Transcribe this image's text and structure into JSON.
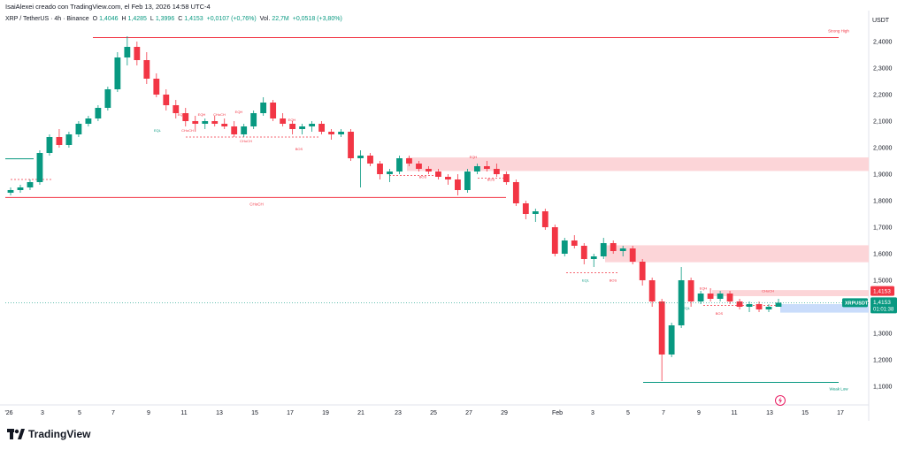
{
  "header": {
    "author_line": "IsaiAlexei creado con TradingView.com, el Feb 13, 2026 14:58 UTC-4",
    "symbol": "XRP / TetherUS · 4h · Binance",
    "ohlc": {
      "o_label": "O",
      "o": "1,4046",
      "h_label": "H",
      "h": "1,4285",
      "l_label": "L",
      "l": "1,3996",
      "c_label": "C",
      "c": "1,4153",
      "change": "+0,0107 (+0,76%)",
      "vol_label": "Vol.",
      "vol": "22,7M",
      "vol_change": "+0,0518 (+3,80%)"
    },
    "currency": "USDT"
  },
  "brand": {
    "logo_text": "TradingView",
    "logo_icon": "tradingview-logo-icon"
  },
  "colors": {
    "up": "#089981",
    "down": "#f23645",
    "zone": "#fcd5d8",
    "zone_blue": "#c9dcfb",
    "axis": "#e0e3eb"
  },
  "chart_data": {
    "type": "candlestick",
    "y_axis": {
      "min": 1.05,
      "max": 2.45,
      "ticks": [
        "2,4000",
        "2,3000",
        "2,2000",
        "2,1000",
        "2,0000",
        "1,9000",
        "1,8000",
        "1,7000",
        "1,6000",
        "1,5000",
        "1,4000",
        "1,3000",
        "1,2000",
        "1,1000"
      ],
      "tick_values": [
        2.4,
        2.3,
        2.2,
        2.1,
        2.0,
        1.9,
        1.8,
        1.7,
        1.6,
        1.5,
        1.4,
        1.3,
        1.2,
        1.1
      ]
    },
    "x_axis": {
      "labels": [
        "'26",
        "3",
        "5",
        "7",
        "9",
        "11",
        "13",
        "15",
        "17",
        "19",
        "21",
        "23",
        "25",
        "27",
        "29",
        "Feb",
        "3",
        "5",
        "7",
        "9",
        "11",
        "13",
        "15",
        "17"
      ]
    },
    "price_labels": {
      "current": {
        "text": "1,4153",
        "value": 1.4153
      },
      "symbol_tag": {
        "symbol": "XRPUSDT",
        "price": "1,4153",
        "countdown": "01:01:38"
      }
    },
    "levels": [
      {
        "label": "Strong High",
        "value": 2.415,
        "color": "#f23645"
      },
      {
        "label": "CHoCH",
        "value": 1.812,
        "color": "#f23645"
      },
      {
        "label": "Weak Low",
        "value": 1.115,
        "color": "#089981"
      },
      {
        "label": "",
        "value": 1.958,
        "color": "#089981"
      }
    ],
    "zones": [
      {
        "top": 1.963,
        "bottom": 1.912,
        "color": "#fcd5d8"
      },
      {
        "top": 1.632,
        "bottom": 1.568,
        "color": "#fcd5d8"
      },
      {
        "top": 1.463,
        "bottom": 1.44,
        "color": "#fcd5d8"
      },
      {
        "top": 1.41,
        "bottom": 1.378,
        "color": "#c9dcfb"
      }
    ],
    "annotations": [
      {
        "text": "EQH",
        "value": 2.095
      },
      {
        "text": "EQH",
        "value": 2.095
      },
      {
        "text": "CHoCH",
        "value": 2.095
      },
      {
        "text": "EQH",
        "value": 2.095
      },
      {
        "text": "EQL",
        "value": 2.095
      },
      {
        "text": "CHoCH",
        "value": 2.095
      },
      {
        "text": "CHoCH",
        "value": 2.095
      },
      {
        "text": "EQH",
        "value": 2.095
      },
      {
        "text": "BOS",
        "value": 2.095
      },
      {
        "text": "EQH",
        "value": 2.095
      },
      {
        "text": "BOS",
        "value": 2.095
      },
      {
        "text": "BOS",
        "value": 2.095
      },
      {
        "text": "EQL",
        "value": 2.095
      },
      {
        "text": "BOS",
        "value": 2.095
      },
      {
        "text": "EQH",
        "value": 2.095
      },
      {
        "text": "EQL",
        "value": 2.095
      },
      {
        "text": "BOS",
        "value": 2.095
      },
      {
        "text": "CHoCH",
        "value": 2.095
      }
    ],
    "ohlc": [
      [
        1.83,
        1.85,
        1.82,
        1.84
      ],
      [
        1.84,
        1.86,
        1.83,
        1.85
      ],
      [
        1.85,
        1.88,
        1.84,
        1.87
      ],
      [
        1.87,
        1.99,
        1.86,
        1.98
      ],
      [
        1.98,
        2.05,
        1.97,
        2.04
      ],
      [
        2.04,
        2.07,
        2.0,
        2.01
      ],
      [
        2.01,
        2.06,
        2.0,
        2.05
      ],
      [
        2.05,
        2.1,
        2.04,
        2.09
      ],
      [
        2.09,
        2.12,
        2.08,
        2.11
      ],
      [
        2.11,
        2.16,
        2.1,
        2.15
      ],
      [
        2.15,
        2.23,
        2.14,
        2.22
      ],
      [
        2.22,
        2.36,
        2.21,
        2.34
      ],
      [
        2.34,
        2.42,
        2.31,
        2.38
      ],
      [
        2.38,
        2.4,
        2.31,
        2.33
      ],
      [
        2.33,
        2.36,
        2.24,
        2.26
      ],
      [
        2.26,
        2.28,
        2.19,
        2.2
      ],
      [
        2.2,
        2.22,
        2.14,
        2.16
      ],
      [
        2.16,
        2.18,
        2.11,
        2.13
      ],
      [
        2.13,
        2.15,
        2.08,
        2.1
      ],
      [
        2.1,
        2.12,
        2.06,
        2.09
      ],
      [
        2.09,
        2.11,
        2.07,
        2.1
      ],
      [
        2.1,
        2.12,
        2.08,
        2.09
      ],
      [
        2.09,
        2.11,
        2.07,
        2.08
      ],
      [
        2.08,
        2.1,
        2.04,
        2.05
      ],
      [
        2.05,
        2.09,
        2.04,
        2.08
      ],
      [
        2.08,
        2.14,
        2.07,
        2.13
      ],
      [
        2.13,
        2.19,
        2.12,
        2.17
      ],
      [
        2.17,
        2.18,
        2.1,
        2.11
      ],
      [
        2.11,
        2.13,
        2.08,
        2.09
      ],
      [
        2.09,
        2.1,
        2.05,
        2.07
      ],
      [
        2.07,
        2.09,
        2.05,
        2.08
      ],
      [
        2.08,
        2.1,
        2.06,
        2.09
      ],
      [
        2.09,
        2.1,
        2.05,
        2.06
      ],
      [
        2.06,
        2.07,
        2.03,
        2.05
      ],
      [
        2.05,
        2.07,
        2.04,
        2.06
      ],
      [
        2.06,
        2.07,
        1.95,
        1.96
      ],
      [
        1.96,
        1.99,
        1.85,
        1.97
      ],
      [
        1.97,
        1.98,
        1.93,
        1.94
      ],
      [
        1.94,
        1.95,
        1.88,
        1.9
      ],
      [
        1.9,
        1.92,
        1.87,
        1.91
      ],
      [
        1.91,
        1.97,
        1.9,
        1.96
      ],
      [
        1.96,
        1.97,
        1.93,
        1.94
      ],
      [
        1.94,
        1.95,
        1.91,
        1.92
      ],
      [
        1.92,
        1.93,
        1.9,
        1.91
      ],
      [
        1.91,
        1.92,
        1.88,
        1.89
      ],
      [
        1.89,
        1.9,
        1.86,
        1.88
      ],
      [
        1.88,
        1.9,
        1.82,
        1.84
      ],
      [
        1.84,
        1.92,
        1.83,
        1.91
      ],
      [
        1.91,
        1.94,
        1.9,
        1.93
      ],
      [
        1.93,
        1.95,
        1.91,
        1.92
      ],
      [
        1.92,
        1.94,
        1.89,
        1.9
      ],
      [
        1.9,
        1.91,
        1.86,
        1.87
      ],
      [
        1.87,
        1.88,
        1.78,
        1.79
      ],
      [
        1.79,
        1.8,
        1.73,
        1.75
      ],
      [
        1.75,
        1.77,
        1.72,
        1.76
      ],
      [
        1.76,
        1.77,
        1.69,
        1.7
      ],
      [
        1.7,
        1.71,
        1.59,
        1.6
      ],
      [
        1.6,
        1.66,
        1.59,
        1.65
      ],
      [
        1.65,
        1.67,
        1.62,
        1.63
      ],
      [
        1.63,
        1.64,
        1.56,
        1.58
      ],
      [
        1.58,
        1.6,
        1.55,
        1.59
      ],
      [
        1.59,
        1.66,
        1.58,
        1.64
      ],
      [
        1.64,
        1.65,
        1.6,
        1.61
      ],
      [
        1.61,
        1.63,
        1.59,
        1.62
      ],
      [
        1.62,
        1.63,
        1.56,
        1.57
      ],
      [
        1.57,
        1.58,
        1.48,
        1.5
      ],
      [
        1.5,
        1.51,
        1.4,
        1.42
      ],
      [
        1.42,
        1.43,
        1.12,
        1.22
      ],
      [
        1.22,
        1.34,
        1.21,
        1.33
      ],
      [
        1.33,
        1.55,
        1.32,
        1.5
      ],
      [
        1.5,
        1.51,
        1.4,
        1.42
      ],
      [
        1.42,
        1.46,
        1.41,
        1.45
      ],
      [
        1.45,
        1.47,
        1.42,
        1.43
      ],
      [
        1.43,
        1.46,
        1.42,
        1.45
      ],
      [
        1.45,
        1.46,
        1.41,
        1.42
      ],
      [
        1.42,
        1.43,
        1.39,
        1.4
      ],
      [
        1.4,
        1.42,
        1.38,
        1.41
      ],
      [
        1.41,
        1.42,
        1.38,
        1.39
      ],
      [
        1.39,
        1.41,
        1.38,
        1.4
      ],
      [
        1.4,
        1.43,
        1.4,
        1.4153
      ]
    ]
  }
}
